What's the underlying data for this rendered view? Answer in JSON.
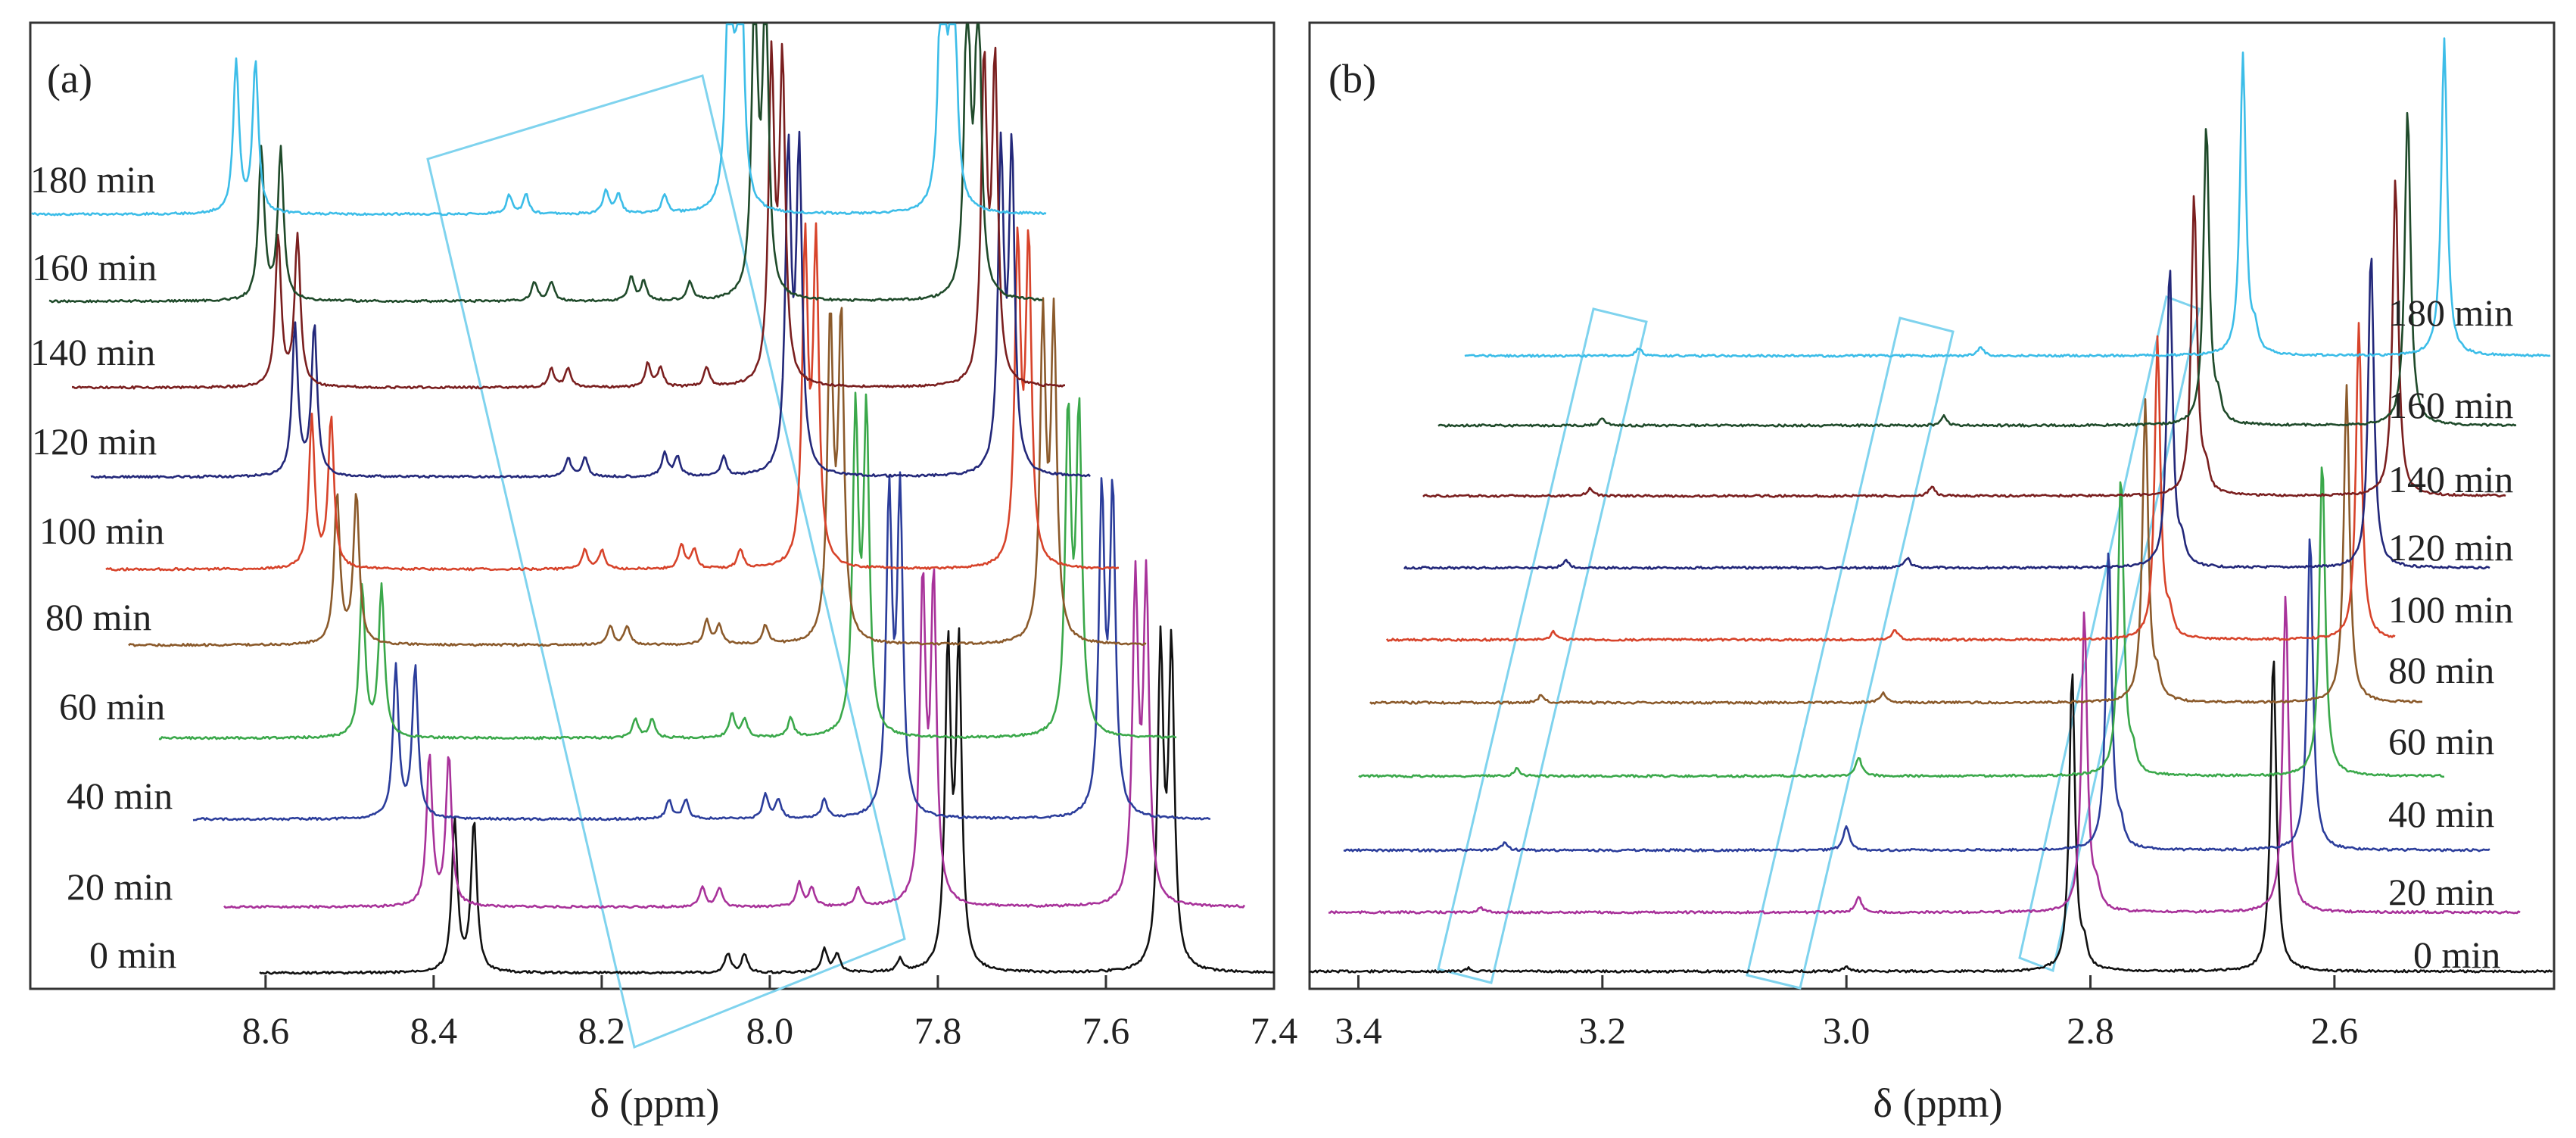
{
  "chart_data": [
    {
      "type": "line",
      "panel_label": "(a)",
      "title": "",
      "xlabel": "δ (ppm)",
      "ylabel": "",
      "xlim": [
        8.88,
        7.4
      ],
      "x_reversed": true,
      "xticks": [
        "8.6",
        "8.4",
        "8.2",
        "8.0",
        "7.8",
        "7.6",
        "7.4"
      ],
      "xtick_values": [
        8.6,
        8.4,
        8.2,
        8.0,
        7.8,
        7.6,
        7.4
      ],
      "display": "stacked spectra with progressive downfield offset",
      "series": [
        {
          "name": "0 min",
          "color": "#111111",
          "ppm_offset": 0.0,
          "vertical_level": 0,
          "peaks": [
            [
              8.375,
              0.95
            ],
            [
              8.352,
              0.95
            ],
            [
              8.05,
              0.12
            ],
            [
              8.03,
              0.12
            ],
            [
              7.935,
              0.15
            ],
            [
              7.92,
              0.12
            ],
            [
              7.845,
              0.08
            ],
            [
              7.788,
              2.0
            ],
            [
              7.775,
              2.0
            ],
            [
              7.535,
              2.0
            ],
            [
              7.522,
              2.0
            ]
          ]
        },
        {
          "name": "20 min",
          "color": "#a8329a",
          "ppm_offset": 0.03,
          "vertical_level": 1,
          "peaks": [
            [
              8.375,
              0.95
            ],
            [
              8.352,
              0.95
            ],
            [
              8.05,
              0.12
            ],
            [
              8.03,
              0.12
            ],
            [
              7.935,
              0.15
            ],
            [
              7.92,
              0.12
            ],
            [
              7.865,
              0.12
            ],
            [
              7.788,
              2.0
            ],
            [
              7.775,
              2.0
            ],
            [
              7.535,
              2.0
            ],
            [
              7.522,
              2.0
            ]
          ]
        },
        {
          "name": "40 min",
          "color": "#2b3d9b",
          "ppm_offset": 0.07,
          "vertical_level": 2,
          "peaks": [
            [
              8.375,
              0.95
            ],
            [
              8.352,
              0.95
            ],
            [
              8.05,
              0.12
            ],
            [
              8.03,
              0.12
            ],
            [
              7.935,
              0.15
            ],
            [
              7.92,
              0.12
            ],
            [
              7.865,
              0.12
            ],
            [
              7.788,
              2.0
            ],
            [
              7.775,
              2.0
            ],
            [
              7.535,
              2.0
            ],
            [
              7.522,
              2.0
            ]
          ]
        },
        {
          "name": "60 min",
          "color": "#3aa84a",
          "ppm_offset": 0.11,
          "vertical_level": 3,
          "peaks": [
            [
              8.375,
              0.95
            ],
            [
              8.352,
              0.95
            ],
            [
              8.05,
              0.12
            ],
            [
              8.03,
              0.12
            ],
            [
              7.935,
              0.15
            ],
            [
              7.92,
              0.12
            ],
            [
              7.865,
              0.12
            ],
            [
              7.788,
              2.0
            ],
            [
              7.775,
              2.0
            ],
            [
              7.535,
              2.0
            ],
            [
              7.522,
              2.0
            ]
          ]
        },
        {
          "name": "80 min",
          "color": "#8b5a2b",
          "ppm_offset": 0.14,
          "vertical_level": 4,
          "peaks": [
            [
              8.375,
              0.95
            ],
            [
              8.352,
              0.95
            ],
            [
              8.05,
              0.12
            ],
            [
              8.03,
              0.12
            ],
            [
              7.935,
              0.15
            ],
            [
              7.92,
              0.12
            ],
            [
              7.865,
              0.12
            ],
            [
              7.788,
              2.0
            ],
            [
              7.775,
              2.0
            ],
            [
              7.535,
              2.0
            ],
            [
              7.522,
              2.0
            ]
          ]
        },
        {
          "name": "100 min",
          "color": "#d7432a",
          "ppm_offset": 0.17,
          "vertical_level": 5,
          "peaks": [
            [
              8.375,
              0.95
            ],
            [
              8.352,
              0.95
            ],
            [
              8.05,
              0.12
            ],
            [
              8.03,
              0.12
            ],
            [
              7.935,
              0.15
            ],
            [
              7.92,
              0.12
            ],
            [
              7.865,
              0.12
            ],
            [
              7.788,
              2.0
            ],
            [
              7.775,
              2.0
            ],
            [
              7.535,
              2.0
            ],
            [
              7.522,
              2.0
            ]
          ]
        },
        {
          "name": "120 min",
          "color": "#23287a",
          "ppm_offset": 0.19,
          "vertical_level": 6,
          "peaks": [
            [
              8.375,
              0.95
            ],
            [
              8.352,
              0.95
            ],
            [
              8.05,
              0.12
            ],
            [
              8.03,
              0.12
            ],
            [
              7.935,
              0.15
            ],
            [
              7.92,
              0.12
            ],
            [
              7.865,
              0.12
            ],
            [
              7.788,
              2.0
            ],
            [
              7.775,
              2.0
            ],
            [
              7.535,
              2.0
            ],
            [
              7.522,
              2.0
            ]
          ]
        },
        {
          "name": "140 min",
          "color": "#7a1f1f",
          "ppm_offset": 0.21,
          "vertical_level": 7,
          "peaks": [
            [
              8.375,
              0.95
            ],
            [
              8.352,
              0.95
            ],
            [
              8.05,
              0.12
            ],
            [
              8.03,
              0.12
            ],
            [
              7.935,
              0.15
            ],
            [
              7.92,
              0.12
            ],
            [
              7.865,
              0.12
            ],
            [
              7.788,
              2.0
            ],
            [
              7.775,
              2.0
            ],
            [
              7.535,
              2.0
            ],
            [
              7.522,
              2.0
            ]
          ]
        },
        {
          "name": "160 min",
          "color": "#1f4a2a",
          "ppm_offset": 0.23,
          "vertical_level": 8,
          "peaks": [
            [
              8.375,
              0.95
            ],
            [
              8.352,
              0.95
            ],
            [
              8.05,
              0.12
            ],
            [
              8.03,
              0.12
            ],
            [
              7.935,
              0.15
            ],
            [
              7.92,
              0.12
            ],
            [
              7.865,
              0.12
            ],
            [
              7.788,
              2.0
            ],
            [
              7.775,
              2.0
            ],
            [
              7.535,
              2.0
            ],
            [
              7.522,
              2.0
            ]
          ]
        },
        {
          "name": "180 min",
          "color": "#3cbde8",
          "ppm_offset": 0.26,
          "vertical_level": 9,
          "peaks": [
            [
              8.375,
              0.95
            ],
            [
              8.352,
              0.95
            ],
            [
              8.05,
              0.12
            ],
            [
              8.03,
              0.12
            ],
            [
              7.935,
              0.15
            ],
            [
              7.92,
              0.12
            ],
            [
              7.865,
              0.12
            ],
            [
              7.788,
              2.0
            ],
            [
              7.775,
              2.0
            ],
            [
              7.535,
              2.0
            ],
            [
              7.522,
              2.0
            ]
          ]
        }
      ]
    },
    {
      "type": "line",
      "panel_label": "(b)",
      "title": "",
      "xlabel": "δ (ppm)",
      "ylabel": "",
      "xlim": [
        3.44,
        2.42
      ],
      "x_reversed": true,
      "xticks": [
        "3.4",
        "3.2",
        "3.0",
        "2.8",
        "2.6"
      ],
      "xtick_values": [
        3.4,
        3.2,
        3.0,
        2.8,
        2.6
      ],
      "display": "stacked spectra with progressive upfield offset",
      "series": [
        {
          "name": "0 min",
          "color": "#111111",
          "ppm_offset": 0.0,
          "vertical_level": 0,
          "peaks": [
            [
              3.31,
              0.02
            ],
            [
              3.0,
              0.03
            ],
            [
              2.815,
              1.9
            ],
            [
              2.805,
              0.12
            ],
            [
              2.65,
              2.0
            ]
          ]
        },
        {
          "name": "20 min",
          "color": "#a8329a",
          "ppm_offset": -0.01,
          "vertical_level": 1,
          "peaks": [
            [
              3.31,
              0.03
            ],
            [
              3.0,
              0.1
            ],
            [
              2.815,
              1.9
            ],
            [
              2.805,
              0.12
            ],
            [
              2.65,
              2.0
            ]
          ]
        },
        {
          "name": "40 min",
          "color": "#2b3d9b",
          "ppm_offset": -0.03,
          "vertical_level": 2,
          "peaks": [
            [
              3.31,
              0.05
            ],
            [
              3.03,
              0.15
            ],
            [
              2.815,
              1.9
            ],
            [
              2.805,
              0.12
            ],
            [
              2.65,
              2.0
            ]
          ]
        },
        {
          "name": "60 min",
          "color": "#3aa84a",
          "ppm_offset": -0.04,
          "vertical_level": 3,
          "peaks": [
            [
              3.31,
              0.05
            ],
            [
              3.03,
              0.12
            ],
            [
              2.815,
              1.9
            ],
            [
              2.805,
              0.12
            ],
            [
              2.65,
              2.0
            ]
          ]
        },
        {
          "name": "80 min",
          "color": "#8b5a2b",
          "ppm_offset": -0.06,
          "vertical_level": 4,
          "peaks": [
            [
              3.31,
              0.05
            ],
            [
              3.03,
              0.06
            ],
            [
              2.815,
              1.9
            ],
            [
              2.805,
              0.12
            ],
            [
              2.65,
              2.0
            ]
          ]
        },
        {
          "name": "100 min",
          "color": "#d7432a",
          "ppm_offset": -0.07,
          "vertical_level": 5,
          "peaks": [
            [
              3.31,
              0.05
            ],
            [
              3.03,
              0.06
            ],
            [
              2.815,
              1.9
            ],
            [
              2.805,
              0.12
            ],
            [
              2.65,
              2.0
            ]
          ]
        },
        {
          "name": "120 min",
          "color": "#23287a",
          "ppm_offset": -0.08,
          "vertical_level": 6,
          "peaks": [
            [
              3.31,
              0.05
            ],
            [
              3.03,
              0.06
            ],
            [
              2.815,
              1.9
            ],
            [
              2.805,
              0.12
            ],
            [
              2.65,
              2.0
            ]
          ]
        },
        {
          "name": "140 min",
          "color": "#7a1f1f",
          "ppm_offset": -0.1,
          "vertical_level": 7,
          "peaks": [
            [
              3.31,
              0.05
            ],
            [
              3.03,
              0.06
            ],
            [
              2.815,
              1.9
            ],
            [
              2.805,
              0.12
            ],
            [
              2.65,
              2.0
            ]
          ]
        },
        {
          "name": "160 min",
          "color": "#1f4a2a",
          "ppm_offset": -0.11,
          "vertical_level": 8,
          "peaks": [
            [
              3.31,
              0.05
            ],
            [
              3.03,
              0.06
            ],
            [
              2.815,
              1.9
            ],
            [
              2.805,
              0.12
            ],
            [
              2.65,
              2.0
            ]
          ]
        },
        {
          "name": "180 min",
          "color": "#3cbde8",
          "ppm_offset": -0.14,
          "vertical_level": 9,
          "peaks": [
            [
              3.31,
              0.05
            ],
            [
              3.03,
              0.06
            ],
            [
              2.815,
              1.9
            ],
            [
              2.805,
              0.12
            ],
            [
              2.65,
              2.0
            ]
          ]
        }
      ]
    }
  ]
}
